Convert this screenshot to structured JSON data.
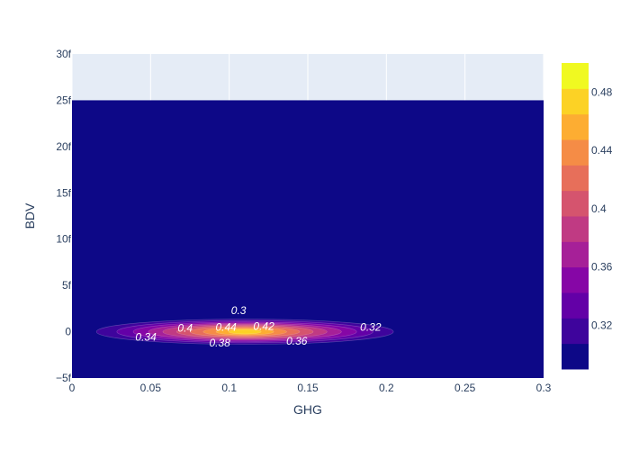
{
  "chart_data": {
    "type": "contour",
    "title": "",
    "xlabel": "GHG",
    "ylabel": "BDV",
    "x_ticks": [
      "0",
      "0.05",
      "0.1",
      "0.15",
      "0.2",
      "0.25",
      "0.3"
    ],
    "y_ticks": [
      "−5f",
      "0",
      "5f",
      "10f",
      "15f",
      "20f",
      "25f",
      "30f"
    ],
    "xlim": [
      0,
      0.3
    ],
    "ylim": [
      -5e-15,
      3e-14
    ],
    "data_extent_y": [
      -5e-15,
      2.5e-14
    ],
    "contour_center": {
      "x": 0.11,
      "y": 0
    },
    "contour_levels": [
      0.3,
      0.32,
      0.34,
      0.36,
      0.38,
      0.4,
      0.42,
      0.44,
      0.46,
      0.48
    ],
    "contour_labels": [
      {
        "text": "0.3",
        "x": 0.106,
        "y": 2.3e-15
      },
      {
        "text": "0.32",
        "x": 0.19,
        "y": 5e-16
      },
      {
        "text": "0.34",
        "x": 0.047,
        "y": -6e-16
      },
      {
        "text": "0.36",
        "x": 0.143,
        "y": -1e-15
      },
      {
        "text": "0.38",
        "x": 0.094,
        "y": -1.2e-15
      },
      {
        "text": "0.44",
        "x": 0.098,
        "y": 5e-16
      },
      {
        "text": "0.4",
        "x": 0.072,
        "y": 4e-16
      },
      {
        "text": "0.42",
        "x": 0.122,
        "y": 6e-16
      }
    ],
    "colorbar": {
      "ticks": [
        "0.32",
        "0.36",
        "0.4",
        "0.44",
        "0.48"
      ],
      "colorscale": [
        "#0d0887",
        "#3e049c",
        "#6300a7",
        "#8606a6",
        "#a62098",
        "#c03a83",
        "#d5546e",
        "#e76f5a",
        "#f58c46",
        "#fdad32",
        "#fcd225",
        "#f0f921"
      ]
    },
    "grid": true,
    "legend": "none"
  }
}
